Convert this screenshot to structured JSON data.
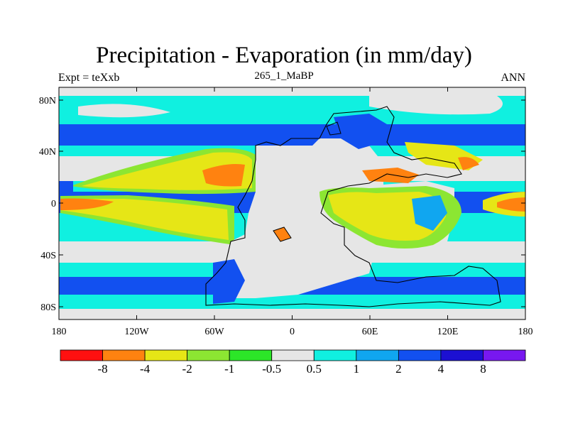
{
  "title": "Precipitation - Evaporation (in mm/day)",
  "left_label": "Expt = teXxb",
  "center_label": "265_1_MaBP",
  "right_label": "ANN",
  "lat_ticks": [
    "80N",
    "40N",
    "0",
    "40S",
    "80S"
  ],
  "lon_ticks": [
    "180",
    "120W",
    "60W",
    "0",
    "60E",
    "120E",
    "180"
  ],
  "colorbar": {
    "colors": [
      "#ff1010",
      "#ff8210",
      "#e6e616",
      "#8ce632",
      "#2ce628",
      "#e6e6e6",
      "#10f0e0",
      "#10a6f0",
      "#1250f0",
      "#1c10d2",
      "#7818f0"
    ],
    "labels": [
      "-8",
      "-4",
      "-2",
      "-1",
      "-0.5",
      "0.5",
      "1",
      "2",
      "4",
      "8"
    ]
  }
}
